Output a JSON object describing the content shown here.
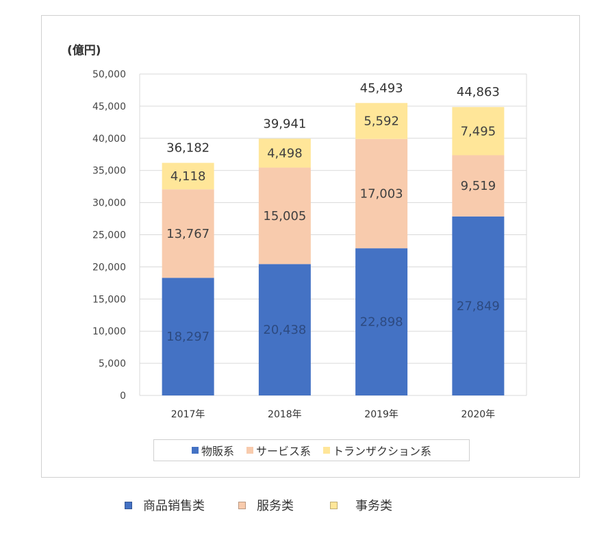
{
  "colors": {
    "blue": "#4472C4",
    "peach": "#F8CBAD",
    "yellow": "#FFE699",
    "grid": "#D9D9D9"
  },
  "chart_data": {
    "type": "bar",
    "stacked": true,
    "unit_label": "(億円)",
    "categories": [
      "2017年",
      "2018年",
      "2019年",
      "2020年"
    ],
    "series": [
      {
        "name": "物販系",
        "values": [
          18297,
          20438,
          22898,
          27849
        ],
        "labels": [
          "18,297",
          "20,438",
          "22,898",
          "27,849"
        ],
        "color": "#4472C4"
      },
      {
        "name": "サービス系",
        "values": [
          13767,
          15005,
          17003,
          9519
        ],
        "labels": [
          "13,767",
          "15,005",
          "17,003",
          "9,519"
        ],
        "color": "#F8CBAD"
      },
      {
        "name": "トランザクション系",
        "values": [
          4118,
          4498,
          5592,
          7495
        ],
        "labels": [
          "4,118",
          "4,498",
          "5,592",
          "7,495"
        ],
        "color": "#FFE699"
      }
    ],
    "totals": [
      36182,
      39941,
      45493,
      44863
    ],
    "total_labels": [
      "36,182",
      "39,941",
      "45,493",
      "44,863"
    ],
    "ylim": [
      0,
      50000
    ],
    "yticks": [
      0,
      5000,
      10000,
      15000,
      20000,
      25000,
      30000,
      35000,
      40000,
      45000,
      50000
    ],
    "ytick_labels": [
      "0",
      "5,000",
      "10,000",
      "15,000",
      "20,000",
      "25,000",
      "30,000",
      "35,000",
      "40,000",
      "45,000",
      "50,000"
    ],
    "grid": true,
    "legend": "bottom"
  },
  "outer_legend": {
    "items": [
      {
        "label": "商品销售类",
        "color": "#4472C4"
      },
      {
        "label": "服务类",
        "color": "#F8CBAD"
      },
      {
        "label": "事务类",
        "color": "#FFE699"
      }
    ]
  }
}
